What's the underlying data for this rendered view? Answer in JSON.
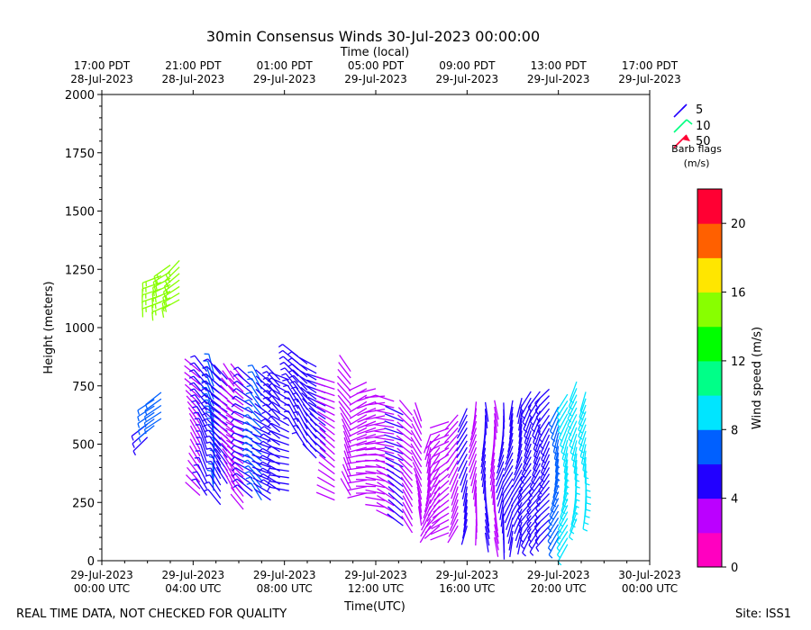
{
  "title": "30min Consensus Winds 30-Jul-2023 00:00:00",
  "footer_left": "REAL TIME DATA, NOT CHECKED FOR QUALITY",
  "footer_right": "Site: ISS1",
  "chart_data": {
    "type": "wind_barb_time_height",
    "xlabel": "Time(UTC)",
    "ylabel": "Height (meters)",
    "top_axis_label": "Time (local)",
    "xlim_hours": [
      0,
      24
    ],
    "ylim": [
      0,
      2000
    ],
    "y_ticks": [
      0,
      250,
      500,
      750,
      1000,
      1250,
      1500,
      1750,
      2000
    ],
    "x_ticks_utc": [
      {
        "hour": 0,
        "line1": "29-Jul-2023",
        "line2": "00:00 UTC"
      },
      {
        "hour": 4,
        "line1": "29-Jul-2023",
        "line2": "04:00 UTC"
      },
      {
        "hour": 8,
        "line1": "29-Jul-2023",
        "line2": "08:00 UTC"
      },
      {
        "hour": 12,
        "line1": "29-Jul-2023",
        "line2": "12:00 UTC"
      },
      {
        "hour": 16,
        "line1": "29-Jul-2023",
        "line2": "16:00 UTC"
      },
      {
        "hour": 20,
        "line1": "29-Jul-2023",
        "line2": "20:00 UTC"
      },
      {
        "hour": 24,
        "line1": "30-Jul-2023",
        "line2": "00:00 UTC"
      }
    ],
    "x_ticks_local": [
      {
        "hour": 0,
        "line1": "17:00 PDT",
        "line2": "28-Jul-2023"
      },
      {
        "hour": 4,
        "line1": "21:00 PDT",
        "line2": "28-Jul-2023"
      },
      {
        "hour": 8,
        "line1": "01:00 PDT",
        "line2": "29-Jul-2023"
      },
      {
        "hour": 12,
        "line1": "05:00 PDT",
        "line2": "29-Jul-2023"
      },
      {
        "hour": 16,
        "line1": "09:00 PDT",
        "line2": "29-Jul-2023"
      },
      {
        "hour": 20,
        "line1": "13:00 PDT",
        "line2": "29-Jul-2023"
      },
      {
        "hour": 24,
        "line1": "17:00 PDT",
        "line2": "29-Jul-2023"
      }
    ],
    "barb_legend": {
      "title_line1": "Barb flags",
      "title_line2": "(m/s)",
      "items": [
        {
          "label": "5",
          "color": "#2200ff"
        },
        {
          "label": "10",
          "color": "#00ff80"
        },
        {
          "label": "50",
          "color": "#ff0033"
        }
      ]
    },
    "colorbar": {
      "label": "Wind speed (m/s)",
      "range": [
        0,
        22
      ],
      "step": 2,
      "ticks": [
        0,
        4,
        8,
        12,
        16,
        20
      ],
      "colors": [
        "#ff00c0",
        "#bb00ff",
        "#2200ff",
        "#0060ff",
        "#00e5ff",
        "#00ff88",
        "#00ff00",
        "#88ff00",
        "#ffe600",
        "#ff6000",
        "#ff0033"
      ]
    },
    "columns": [
      {
        "t": 2.0,
        "h0": 530,
        "h1": 600,
        "spd": 5,
        "dir": 230
      },
      {
        "t": 2.3,
        "h0": 580,
        "h1": 710,
        "spd": 7,
        "dir": 225
      },
      {
        "t": 2.6,
        "h0": 610,
        "h1": 740,
        "spd": 7,
        "dir": 225
      },
      {
        "t": 2.6,
        "h0": 1110,
        "h1": 1240,
        "spd": 15,
        "dir": 240
      },
      {
        "t": 3.0,
        "h0": 1100,
        "h1": 1280,
        "spd": 15,
        "dir": 235
      },
      {
        "t": 3.4,
        "h0": 1120,
        "h1": 1300,
        "spd": 15,
        "dir": 230
      },
      {
        "t": 4.3,
        "h0": 280,
        "h1": 820,
        "spd": 3,
        "dir": 320
      },
      {
        "t": 4.6,
        "h0": 280,
        "h1": 820,
        "spd": 5,
        "dir": 330
      },
      {
        "t": 4.9,
        "h0": 300,
        "h1": 820,
        "spd": 7,
        "dir": 350
      },
      {
        "t": 5.2,
        "h0": 240,
        "h1": 820,
        "spd": 5,
        "dir": 320
      },
      {
        "t": 5.5,
        "h0": 330,
        "h1": 800,
        "spd": 4,
        "dir": 315
      },
      {
        "t": 5.8,
        "h0": 300,
        "h1": 800,
        "spd": 3,
        "dir": 320
      },
      {
        "t": 6.2,
        "h0": 220,
        "h1": 780,
        "spd": 3,
        "dir": 310
      },
      {
        "t": 6.6,
        "h0": 270,
        "h1": 780,
        "spd": 5,
        "dir": 300
      },
      {
        "t": 7.0,
        "h0": 260,
        "h1": 780,
        "spd": 6,
        "dir": 320
      },
      {
        "t": 7.4,
        "h0": 260,
        "h1": 780,
        "spd": 4,
        "dir": 300
      },
      {
        "t": 7.8,
        "h0": 300,
        "h1": 780,
        "spd": 5,
        "dir": 310
      },
      {
        "t": 8.2,
        "h0": 300,
        "h1": 780,
        "spd": 5,
        "dir": 290
      },
      {
        "t": 8.6,
        "h0": 540,
        "h1": 880,
        "spd": 5,
        "dir": 320
      },
      {
        "t": 9.0,
        "h0": 480,
        "h1": 870,
        "spd": 5,
        "dir": 320
      },
      {
        "t": 9.4,
        "h0": 440,
        "h1": 840,
        "spd": 4,
        "dir": 310
      },
      {
        "t": 9.8,
        "h0": 440,
        "h1": 800,
        "spd": 4,
        "dir": 300
      },
      {
        "t": 10.2,
        "h0": 260,
        "h1": 780,
        "spd": 3,
        "dir": 300
      },
      {
        "t": 10.9,
        "h0": 280,
        "h1": 820,
        "spd": 2,
        "dir": 330
      },
      {
        "t": 11.6,
        "h0": 290,
        "h1": 770,
        "spd": 2,
        "dir": 250
      },
      {
        "t": 12.0,
        "h0": 290,
        "h1": 760,
        "spd": 2,
        "dir": 260
      },
      {
        "t": 12.4,
        "h0": 230,
        "h1": 730,
        "spd": 2,
        "dir": 270
      },
      {
        "t": 12.8,
        "h0": 180,
        "h1": 700,
        "spd": 3,
        "dir": 290
      },
      {
        "t": 13.2,
        "h0": 150,
        "h1": 650,
        "spd": 4,
        "dir": 300
      },
      {
        "t": 13.6,
        "h0": 120,
        "h1": 640,
        "spd": 3,
        "dir": 320
      },
      {
        "t": 14.0,
        "h0": 150,
        "h1": 600,
        "spd": 2,
        "dir": 340
      },
      {
        "t": 14.4,
        "h0": 150,
        "h1": 560,
        "spd": 2,
        "dir": 200
      },
      {
        "t": 14.8,
        "h0": 150,
        "h1": 560,
        "spd": 2,
        "dir": 220
      },
      {
        "t": 15.2,
        "h0": 120,
        "h1": 600,
        "spd": 3,
        "dir": 240
      },
      {
        "t": 15.6,
        "h0": 150,
        "h1": 650,
        "spd": 3,
        "dir": 210
      },
      {
        "t": 16.0,
        "h0": 150,
        "h1": 670,
        "spd": 4,
        "dir": 200
      },
      {
        "t": 16.4,
        "h0": 150,
        "h1": 690,
        "spd": 3,
        "dir": 190
      },
      {
        "t": 16.8,
        "h0": 120,
        "h1": 690,
        "spd": 4,
        "dir": 180
      },
      {
        "t": 17.2,
        "h0": 100,
        "h1": 690,
        "spd": 3,
        "dir": 180
      },
      {
        "t": 17.6,
        "h0": 90,
        "h1": 690,
        "spd": 4,
        "dir": 190
      },
      {
        "t": 18.0,
        "h0": 100,
        "h1": 700,
        "spd": 4,
        "dir": 200
      },
      {
        "t": 18.4,
        "h0": 110,
        "h1": 720,
        "spd": 4,
        "dir": 200
      },
      {
        "t": 18.8,
        "h0": 110,
        "h1": 730,
        "spd": 5,
        "dir": 210
      },
      {
        "t": 19.2,
        "h0": 110,
        "h1": 740,
        "spd": 5,
        "dir": 210
      },
      {
        "t": 19.6,
        "h0": 120,
        "h1": 750,
        "spd": 5,
        "dir": 215
      },
      {
        "t": 20.0,
        "h0": 100,
        "h1": 660,
        "spd": 6,
        "dir": 200
      },
      {
        "t": 20.4,
        "h0": 70,
        "h1": 720,
        "spd": 8,
        "dir": 200
      },
      {
        "t": 20.8,
        "h0": 180,
        "h1": 780,
        "spd": 9,
        "dir": 195
      },
      {
        "t": 21.2,
        "h0": 220,
        "h1": 750,
        "spd": 8,
        "dir": 190
      }
    ]
  }
}
